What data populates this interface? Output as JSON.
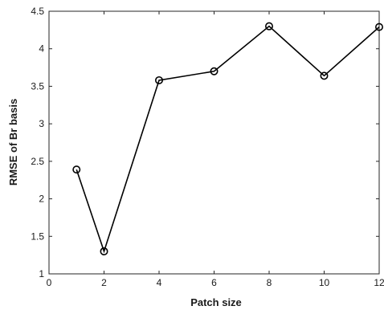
{
  "chart_data": {
    "type": "line",
    "title": "",
    "xlabel": "Patch size",
    "ylabel": "RMSE of Br basis",
    "xlim": [
      0,
      12
    ],
    "ylim": [
      1,
      4.5
    ],
    "xticks": [
      0,
      2,
      4,
      6,
      8,
      10,
      12
    ],
    "yticks": [
      1,
      1.5,
      2,
      2.5,
      3,
      3.5,
      4,
      4.5
    ],
    "xtick_labels": [
      "0",
      "2",
      "4",
      "6",
      "8",
      "10",
      "12"
    ],
    "ytick_labels": [
      "1",
      "1.5",
      "2",
      "2.5",
      "3",
      "3.5",
      "4",
      "4.5"
    ],
    "grid": false,
    "series": [
      {
        "x": [
          1,
          2,
          4,
          6,
          8,
          10,
          12
        ],
        "values": [
          2.39,
          1.3,
          3.58,
          3.7,
          4.3,
          3.64,
          4.29
        ],
        "color": "#000000",
        "marker": "circle-open"
      }
    ]
  }
}
